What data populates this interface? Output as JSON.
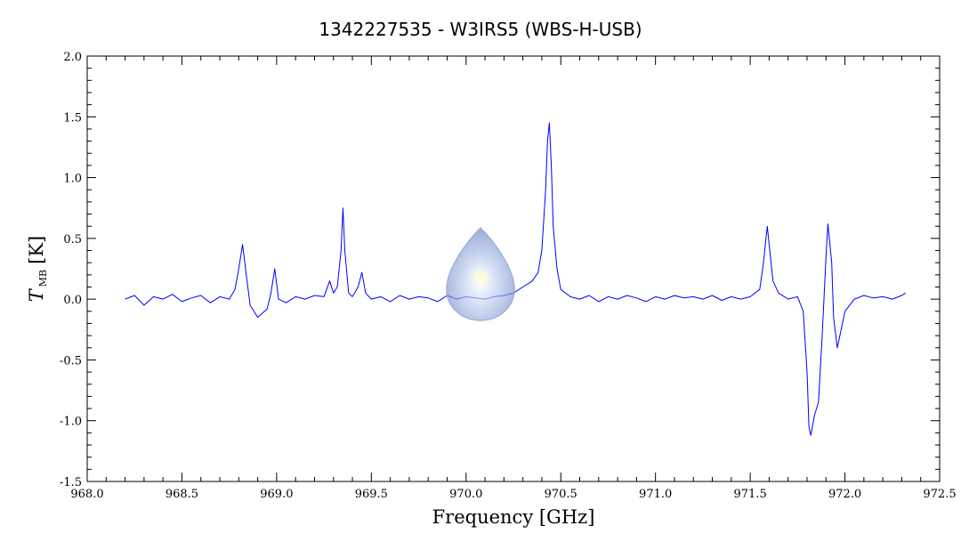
{
  "chart_data": {
    "type": "line",
    "title": "1342227535 - W3IRS5 (WBS-H-USB)",
    "xlabel": "Frequency [GHz]",
    "ylabel": {
      "main": "T",
      "sub": "MB",
      "unit": "[K]"
    },
    "xlim": [
      968.0,
      972.5
    ],
    "ylim": [
      -1.5,
      2.0
    ],
    "x_ticks": [
      "968.0",
      "968.5",
      "969.0",
      "969.5",
      "970.0",
      "970.5",
      "971.0",
      "971.5",
      "972.0",
      "972.5"
    ],
    "y_ticks": [
      "2.0",
      "1.5",
      "1.0",
      "0.5",
      "0.0",
      "-0.5",
      "-1.0",
      "-1.5"
    ],
    "grid": false,
    "legend": "none",
    "line_color": "#0000ff",
    "series": [
      {
        "x": [
          968.2,
          968.25,
          968.3,
          968.35,
          968.4,
          968.45,
          968.5,
          968.55,
          968.6,
          968.65,
          968.7,
          968.75,
          968.78,
          968.8,
          968.82,
          968.84,
          968.86,
          968.9,
          968.95,
          968.97,
          968.99,
          969.01,
          969.05,
          969.1,
          969.15,
          969.2,
          969.25,
          969.28,
          969.3,
          969.32,
          969.34,
          969.35,
          969.36,
          969.38,
          969.4,
          969.43,
          969.45,
          969.47,
          969.5,
          969.55,
          969.6,
          969.65,
          969.7,
          969.75,
          969.8,
          969.85,
          969.9,
          969.95,
          970.0,
          970.05,
          970.1,
          970.15,
          970.2,
          970.25,
          970.3,
          970.35,
          970.38,
          970.4,
          970.42,
          970.43,
          970.44,
          970.45,
          970.46,
          970.48,
          970.5,
          970.55,
          970.6,
          970.65,
          970.7,
          970.75,
          970.8,
          970.85,
          970.9,
          970.95,
          971.0,
          971.05,
          971.1,
          971.15,
          971.2,
          971.25,
          971.3,
          971.35,
          971.4,
          971.45,
          971.5,
          971.55,
          971.57,
          971.59,
          971.6,
          971.62,
          971.65,
          971.7,
          971.75,
          971.78,
          971.8,
          971.81,
          971.82,
          971.84,
          971.86,
          971.88,
          971.9,
          971.91,
          971.93,
          971.94,
          971.96,
          972.0,
          972.05,
          972.1,
          972.15,
          972.2,
          972.25,
          972.3,
          972.32
        ],
        "y": [
          0.0,
          0.03,
          -0.05,
          0.02,
          0.0,
          0.04,
          -0.02,
          0.01,
          0.03,
          -0.03,
          0.02,
          0.0,
          0.08,
          0.25,
          0.45,
          0.2,
          -0.05,
          -0.15,
          -0.08,
          0.05,
          0.25,
          0.0,
          -0.03,
          0.02,
          0.0,
          0.03,
          0.02,
          0.15,
          0.05,
          0.1,
          0.4,
          0.75,
          0.4,
          0.05,
          0.02,
          0.1,
          0.22,
          0.05,
          0.0,
          0.02,
          -0.02,
          0.03,
          0.0,
          0.02,
          0.01,
          -0.02,
          0.03,
          0.0,
          0.02,
          0.01,
          0.0,
          0.02,
          0.03,
          0.05,
          0.1,
          0.15,
          0.22,
          0.4,
          0.9,
          1.3,
          1.45,
          1.1,
          0.6,
          0.25,
          0.08,
          0.02,
          0.0,
          0.03,
          -0.02,
          0.02,
          0.0,
          0.03,
          0.01,
          -0.02,
          0.02,
          0.0,
          0.03,
          0.01,
          0.02,
          0.0,
          0.03,
          -0.01,
          0.02,
          0.0,
          0.02,
          0.08,
          0.3,
          0.6,
          0.45,
          0.15,
          0.05,
          0.0,
          0.02,
          -0.1,
          -0.6,
          -1.05,
          -1.12,
          -0.95,
          -0.85,
          -0.3,
          0.35,
          0.62,
          0.3,
          -0.15,
          -0.4,
          -0.1,
          0.0,
          0.03,
          0.01,
          0.02,
          0.0,
          0.03,
          0.05
        ]
      }
    ]
  }
}
